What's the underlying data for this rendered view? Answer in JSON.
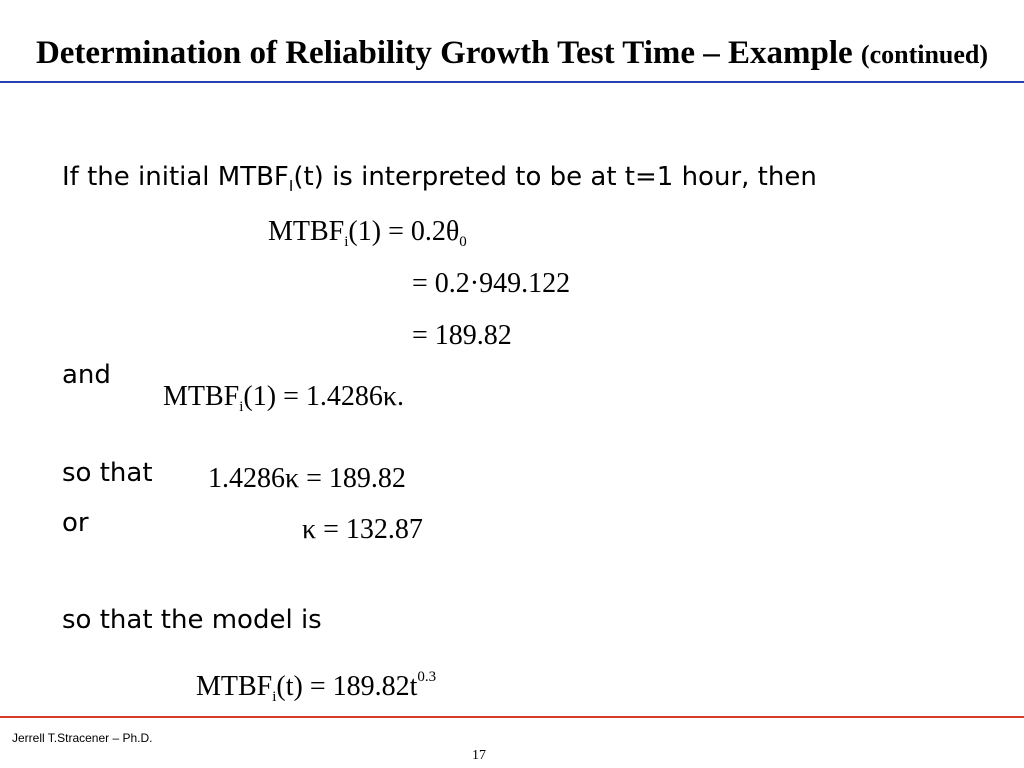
{
  "slide": {
    "title_main": "Determination of Reliability Growth Test Time – Example",
    "title_suffix": "(continued)",
    "intro_pre": "If the initial MTBF",
    "intro_sub": "I",
    "intro_post": "(t) is interpreted to be at t=1 hour, then",
    "eq1_lhs": "MTBF",
    "eq1_sub": "i",
    "eq1_rest": "(1) = 0.2θ",
    "eq1_sub2": "0",
    "eq2": "= 0.2·949.122",
    "eq3": "= 189.82",
    "and_label": "and",
    "eq4_lhs": "MTBF",
    "eq4_sub": "i",
    "eq4_rest": "(1) = 1.4286κ.",
    "so_that_label": "so that",
    "eq5": "1.4286κ = 189.82",
    "or_label": "or",
    "eq6": "κ = 132.87",
    "model_label": "so that the model is",
    "eq7_lhs": "MTBF",
    "eq7_sub": "i",
    "eq7_rest": "(t) = 189.82t",
    "eq7_sup": "0.3"
  },
  "footer": {
    "author": "Jerrell T.Stracener – Ph.D.",
    "page": "17"
  },
  "colors": {
    "title_rule": "#2b3fb5",
    "footer_rule": "#d83a2a"
  }
}
